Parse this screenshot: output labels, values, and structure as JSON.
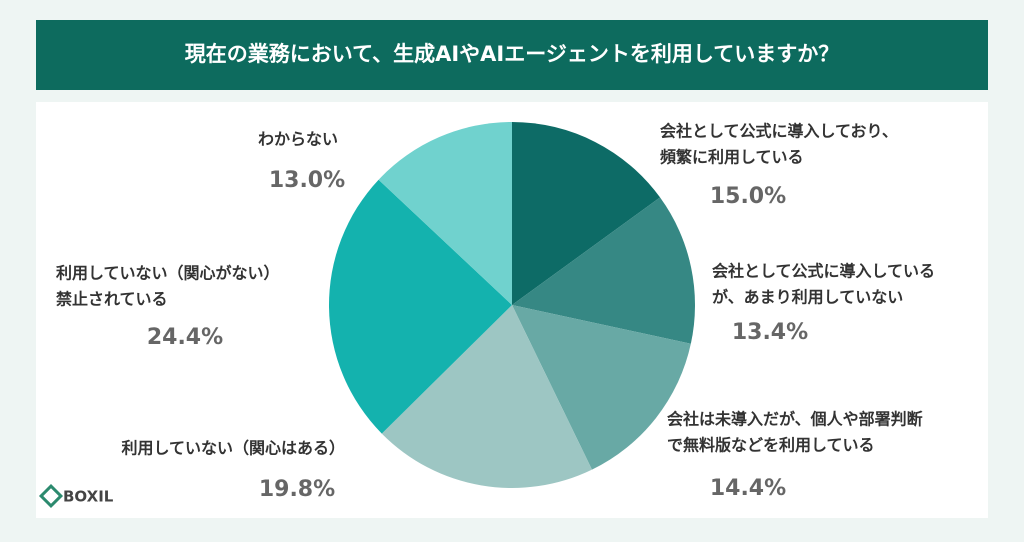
{
  "chart_data": {
    "type": "pie",
    "title": "現在の業務において、生成AIやAIエージェントを利用していますか？",
    "categories": [
      [
        "会社として公式に導入しており、",
        "頻繁に利用している"
      ],
      [
        "会社として公式に導入している",
        "が、あまり利用していない"
      ],
      [
        "会社は未導入だが、個人や部署判断",
        "で無料版などを利用している"
      ],
      [
        "利用していない（関心はある）"
      ],
      [
        "利用していない（関心がない）",
        "禁止されている"
      ],
      [
        "わからない"
      ]
    ],
    "values": [
      15.0,
      13.4,
      14.4,
      19.8,
      24.4,
      13.0
    ],
    "value_labels": [
      "15.0%",
      "13.4%",
      "14.4%",
      "19.8%",
      "24.4%",
      "13.0%"
    ],
    "colors": [
      "#0d6b66",
      "#368884",
      "#68a9a5",
      "#9dc6c3",
      "#14b2ae",
      "#70d2ce"
    ]
  },
  "logo": "BOXIL"
}
